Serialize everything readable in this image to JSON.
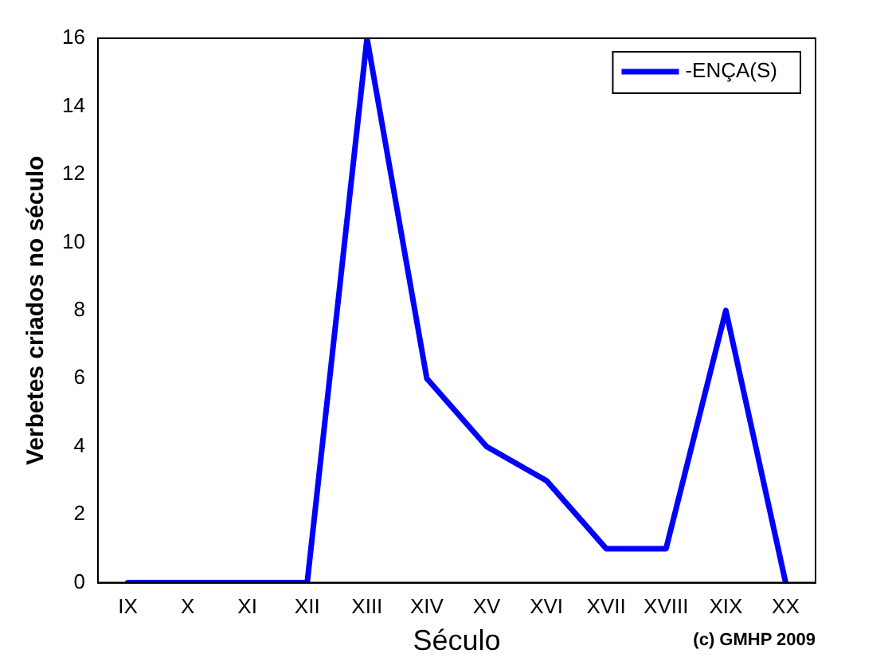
{
  "chart_data": {
    "type": "line",
    "xlabel": "Século",
    "ylabel": "Verbetes criados no século",
    "categories": [
      "IX",
      "X",
      "XI",
      "XII",
      "XIII",
      "XIV",
      "XV",
      "XVI",
      "XVII",
      "XVIII",
      "XIX",
      "XX"
    ],
    "series": [
      {
        "name": "-ENÇA(S)",
        "color": "#0000ff",
        "values": [
          0,
          0,
          0,
          0,
          16,
          6,
          4,
          3,
          1,
          1,
          8,
          0
        ]
      }
    ],
    "ylim": [
      0,
      16
    ],
    "yticks": [
      0,
      2,
      4,
      6,
      8,
      10,
      12,
      14,
      16
    ],
    "grid": false,
    "legend": "top right",
    "marker": "none",
    "line_style": "solid",
    "annotations": [
      "(c) GMHP 2009"
    ]
  }
}
